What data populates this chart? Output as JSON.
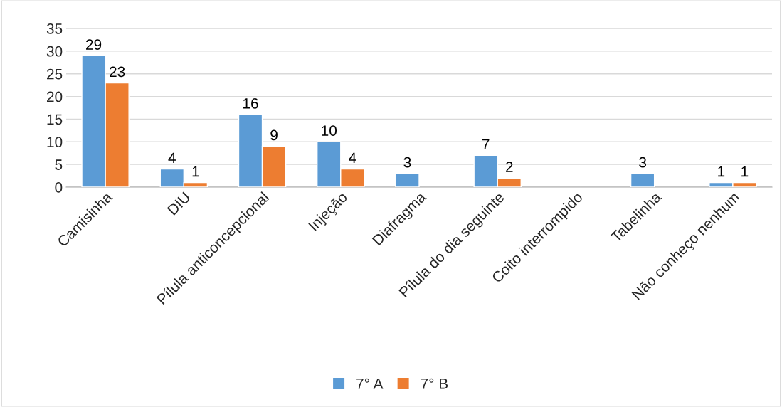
{
  "chart_data": {
    "type": "bar",
    "categories": [
      "Camisinha",
      "DIU",
      "Pílula anticoncepcional",
      "Injeção",
      "Diafragma",
      "Pílula do dia seguinte",
      "Coito interrompido",
      "Tabelinha",
      "Não conheço nenhum"
    ],
    "series": [
      {
        "name": "7° A",
        "color": "#5b9bd5",
        "values": [
          29,
          4,
          16,
          10,
          3,
          7,
          null,
          3,
          1
        ]
      },
      {
        "name": "7° B",
        "color": "#ed7d31",
        "values": [
          23,
          1,
          9,
          4,
          null,
          2,
          null,
          null,
          1
        ]
      }
    ],
    "ylim": [
      0,
      35
    ],
    "yticks": [
      0,
      5,
      10,
      15,
      20,
      25,
      30,
      35
    ],
    "grid": "y",
    "legend": "bottom",
    "data_labels": true
  }
}
